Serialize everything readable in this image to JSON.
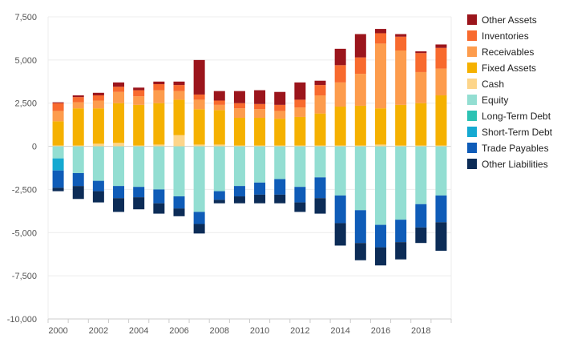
{
  "chart_data": {
    "type": "bar",
    "stacked": true,
    "title": "",
    "xlabel": "",
    "ylabel": "",
    "ylim": [
      -10000,
      7500
    ],
    "y_ticks": [
      7500,
      5000,
      2500,
      0,
      -2500,
      -5000,
      -7500,
      -10000
    ],
    "y_tick_labels": [
      "7,500",
      "5,000",
      "2,500",
      "0",
      "-2,500",
      "-5,000",
      "-7,500",
      "-10,000"
    ],
    "x_tick_labels": [
      "2000",
      "2002",
      "2004",
      "2006",
      "2008",
      "2010",
      "2012",
      "2014",
      "2016",
      "2018"
    ],
    "categories": [
      "2000",
      "2001",
      "2002",
      "2003",
      "2004",
      "2005",
      "2006",
      "2007",
      "2008",
      "2009",
      "2010",
      "2011",
      "2012",
      "2013",
      "2014",
      "2015",
      "2016",
      "2017",
      "2018",
      "2019"
    ],
    "grid": "horizontal",
    "legend_position": "right",
    "positive_series": [
      {
        "name": "Cash",
        "color": "#fdd58a",
        "values": [
          50,
          50,
          150,
          200,
          50,
          100,
          650,
          100,
          100,
          50,
          50,
          50,
          50,
          50,
          50,
          50,
          100,
          50,
          50,
          50
        ]
      },
      {
        "name": "Fixed Assets",
        "color": "#f5b100",
        "values": [
          1400,
          2150,
          2050,
          2300,
          2350,
          2400,
          2050,
          2050,
          2000,
          1600,
          1600,
          1550,
          1650,
          1850,
          2250,
          2300,
          2100,
          2350,
          2450,
          2900
        ]
      },
      {
        "name": "Receivables",
        "color": "#fd9c4d",
        "values": [
          600,
          350,
          450,
          650,
          500,
          750,
          500,
          550,
          300,
          550,
          500,
          450,
          550,
          1050,
          1400,
          1850,
          3750,
          3150,
          1800,
          1550
        ]
      },
      {
        "name": "Inventories",
        "color": "#f86a2e",
        "values": [
          450,
          300,
          300,
          300,
          350,
          350,
          350,
          300,
          250,
          300,
          300,
          350,
          450,
          600,
          1000,
          950,
          600,
          800,
          1100,
          1200
        ]
      },
      {
        "name": "Other Assets",
        "color": "#9b151c",
        "values": [
          50,
          100,
          150,
          250,
          150,
          150,
          200,
          2000,
          550,
          700,
          800,
          750,
          1000,
          250,
          950,
          1350,
          250,
          150,
          100,
          200
        ]
      }
    ],
    "negative_series": [
      {
        "name": "Equity",
        "color": "#93ded2",
        "values": [
          -700,
          -1550,
          -2000,
          -2300,
          -2350,
          -2500,
          -2900,
          -3800,
          -2600,
          -2300,
          -2100,
          -1900,
          -2350,
          -1800,
          -2850,
          -3700,
          -4550,
          -4250,
          -3350,
          -2850
        ]
      },
      {
        "name": "Short-Term Debt",
        "color": "#15a9d1",
        "values": [
          -700,
          0,
          0,
          0,
          0,
          0,
          0,
          0,
          0,
          0,
          0,
          0,
          0,
          0,
          0,
          0,
          0,
          0,
          0,
          0
        ]
      },
      {
        "name": "Trade Payables",
        "color": "#0f5cb8",
        "values": [
          -1000,
          -750,
          -600,
          -700,
          -600,
          -800,
          -700,
          -700,
          -500,
          -600,
          -700,
          -900,
          -900,
          -1200,
          -1600,
          -1900,
          -1300,
          -1300,
          -1350,
          -1550
        ]
      },
      {
        "name": "Other Liabilities",
        "color": "#0c2c57",
        "values": [
          -200,
          -750,
          -650,
          -800,
          -700,
          -600,
          -450,
          -550,
          -200,
          -400,
          -500,
          -500,
          -550,
          -900,
          -1300,
          -1000,
          -1050,
          -1000,
          -900,
          -1650
        ]
      },
      {
        "name": "Long-Term Debt",
        "color": "#2cc2b3",
        "values": [
          0,
          0,
          0,
          0,
          0,
          0,
          0,
          0,
          0,
          0,
          0,
          0,
          0,
          0,
          0,
          0,
          0,
          0,
          0,
          0
        ]
      }
    ],
    "legend": [
      {
        "name": "Other Assets",
        "color": "#9b151c"
      },
      {
        "name": "Inventories",
        "color": "#f86a2e"
      },
      {
        "name": "Receivables",
        "color": "#fd9c4d"
      },
      {
        "name": "Fixed Assets",
        "color": "#f5b100"
      },
      {
        "name": "Cash",
        "color": "#fdd58a"
      },
      {
        "name": "Equity",
        "color": "#93ded2"
      },
      {
        "name": "Long-Term Debt",
        "color": "#2cc2b3"
      },
      {
        "name": "Short-Term Debt",
        "color": "#15a9d1"
      },
      {
        "name": "Trade Payables",
        "color": "#0f5cb8"
      },
      {
        "name": "Other Liabilities",
        "color": "#0c2c57"
      }
    ]
  }
}
